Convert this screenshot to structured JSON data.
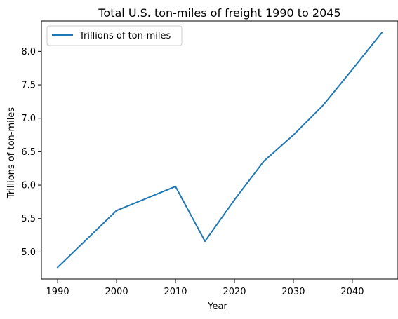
{
  "chart_data": {
    "type": "line",
    "title": "Total U.S. ton-miles of freight 1990 to 2045",
    "xlabel": "Year",
    "ylabel": "Trillions of ton-miles",
    "x": [
      1990,
      2000,
      2010,
      2015,
      2020,
      2025,
      2030,
      2035,
      2040,
      2045
    ],
    "series": [
      {
        "name": "Trillions of ton-miles",
        "values": [
          4.77,
          5.62,
          5.98,
          5.16,
          5.78,
          6.36,
          6.75,
          7.19,
          7.73,
          8.28
        ],
        "color": "#1f77b4"
      }
    ],
    "xlim": [
      1987.25,
      2047.75
    ],
    "ylim": [
      4.595,
      8.455
    ],
    "xticks": [
      1990,
      2000,
      2010,
      2020,
      2030,
      2040
    ],
    "yticks": [
      5.0,
      5.5,
      6.0,
      6.5,
      7.0,
      7.5,
      8.0
    ],
    "ytick_labels": [
      "5.0",
      "5.5",
      "6.0",
      "6.5",
      "7.0",
      "7.5",
      "8.0"
    ],
    "grid": false,
    "legend_position": "top-left"
  }
}
